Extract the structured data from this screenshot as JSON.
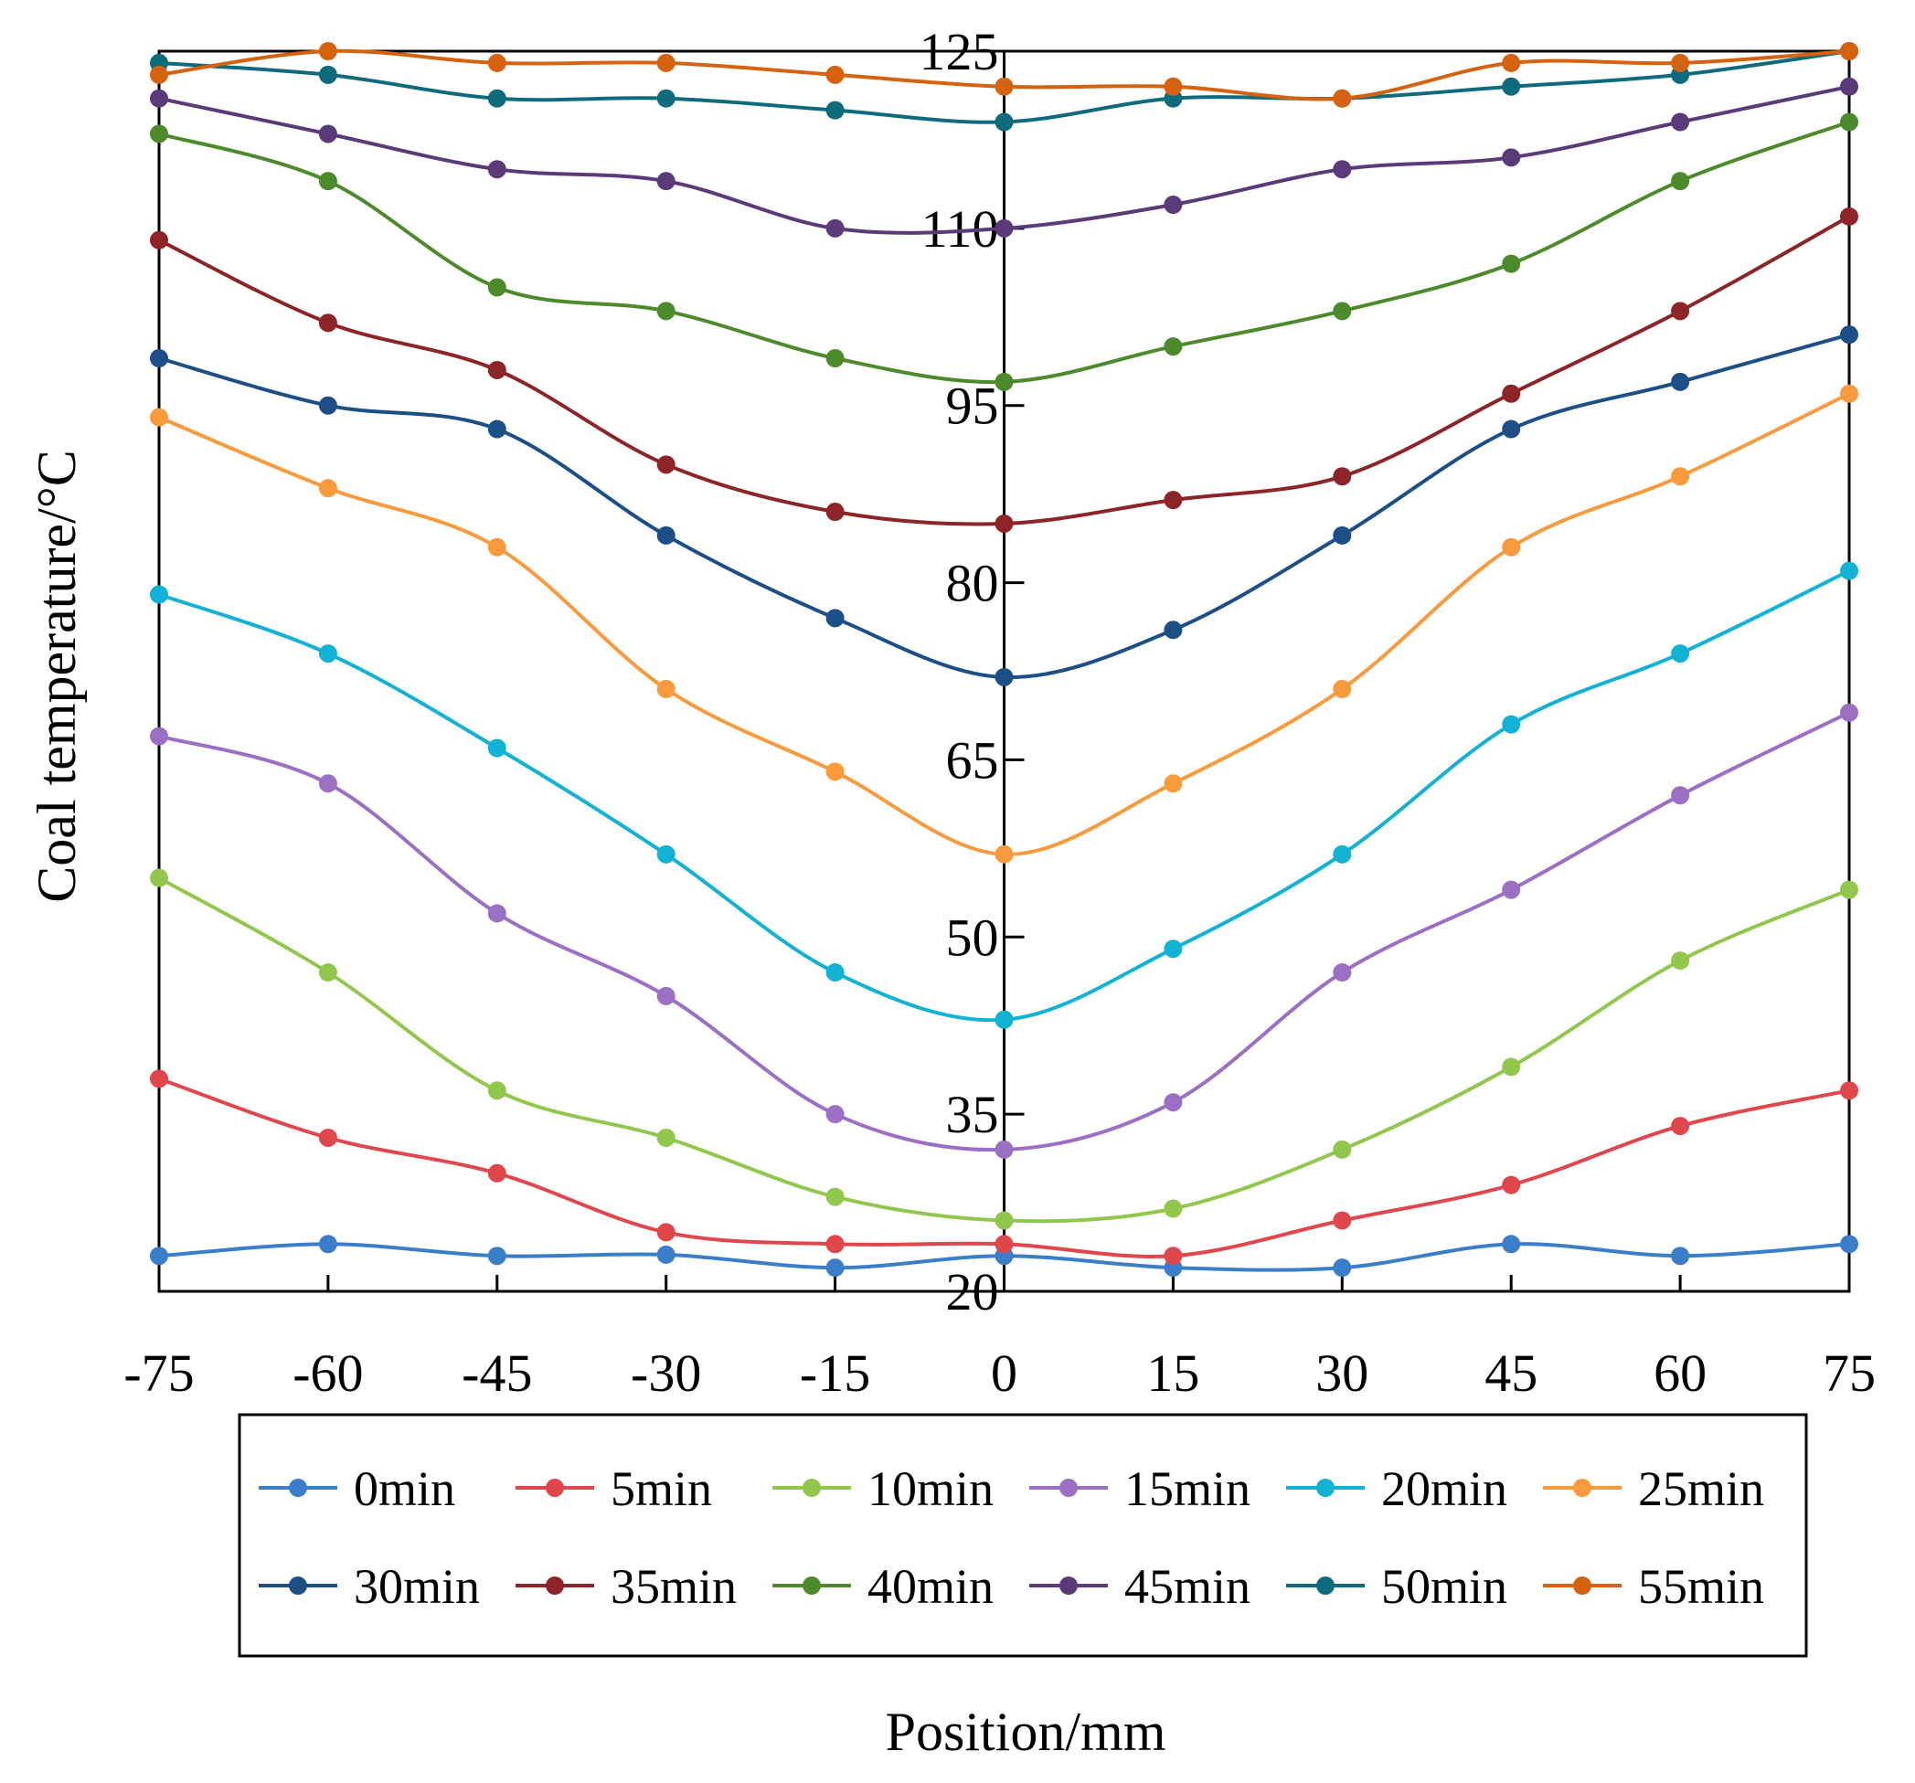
{
  "chart_data": {
    "type": "line",
    "title": "",
    "xlabel": "Position/mm",
    "ylabel": "Coal temperature/°C",
    "x": [
      -75,
      -60,
      -45,
      -30,
      -15,
      0,
      15,
      30,
      45,
      60,
      75
    ],
    "x_tick_labels": [
      "-75",
      "-60",
      "-45",
      "-30",
      "-15",
      "0",
      "15",
      "30",
      "45",
      "60",
      "75"
    ],
    "xlim": [
      -75,
      75
    ],
    "ylim": [
      20,
      125
    ],
    "y_ticks": [
      20,
      35,
      50,
      65,
      80,
      95,
      110,
      125
    ],
    "y_tick_labels": [
      "20",
      "35",
      "50",
      "65",
      "80",
      "95",
      "110",
      "125"
    ],
    "grid": false,
    "legend_position": "bottom",
    "series": [
      {
        "name": "0min",
        "color": "#3a7dc9",
        "values": [
          23,
          24,
          23,
          23.1,
          22,
          23,
          22,
          22,
          24,
          23,
          24
        ]
      },
      {
        "name": "5min",
        "color": "#e0474c",
        "values": [
          38,
          33,
          30,
          25,
          24,
          24,
          23,
          26,
          29,
          34,
          37
        ]
      },
      {
        "name": "10min",
        "color": "#92c74d",
        "values": [
          55,
          47,
          37,
          33,
          28,
          26,
          27,
          32,
          39,
          48,
          54
        ]
      },
      {
        "name": "15min",
        "color": "#9b6fc4",
        "values": [
          67,
          63,
          52,
          45,
          35,
          32,
          36,
          47,
          54,
          62,
          69
        ]
      },
      {
        "name": "20min",
        "color": "#11b2d4",
        "values": [
          79,
          74,
          66,
          57,
          47,
          43,
          49,
          57,
          68,
          74,
          81
        ]
      },
      {
        "name": "25min",
        "color": "#f99a3c",
        "values": [
          94,
          88,
          83,
          71,
          64,
          57,
          63,
          71,
          83,
          89,
          96
        ]
      },
      {
        "name": "30min",
        "color": "#1c4f86",
        "values": [
          99,
          95,
          93,
          84,
          77,
          72,
          76,
          84,
          93,
          97,
          101
        ]
      },
      {
        "name": "35min",
        "color": "#8c2428",
        "values": [
          109,
          102,
          98,
          90,
          86,
          85,
          87,
          89,
          96,
          103,
          111
        ]
      },
      {
        "name": "40min",
        "color": "#4c8a2b",
        "values": [
          118,
          114,
          105,
          103,
          99,
          97,
          100,
          103,
          107,
          114,
          119
        ]
      },
      {
        "name": "45min",
        "color": "#5b3a7a",
        "values": [
          121,
          118,
          115,
          114,
          110,
          110,
          112,
          115,
          116,
          119,
          122
        ]
      },
      {
        "name": "50min",
        "color": "#0e6b7c",
        "values": [
          124,
          123,
          121,
          121,
          120,
          119,
          121,
          121,
          122,
          123,
          125
        ]
      },
      {
        "name": "55min",
        "color": "#d4620f",
        "values": [
          123,
          125,
          124,
          124,
          123,
          122,
          122,
          121,
          124,
          124,
          125
        ]
      }
    ]
  }
}
